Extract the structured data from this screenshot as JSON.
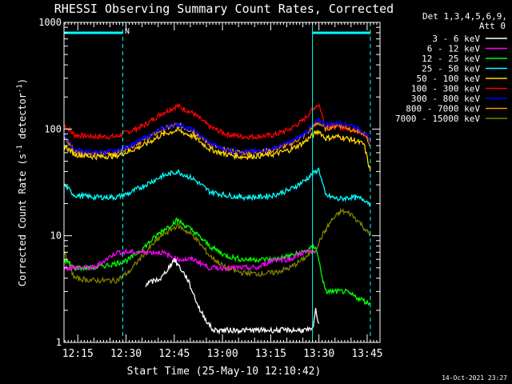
{
  "chart_data": {
    "type": "line",
    "title": "RHESSI Observing Summary Count Rates, Corrected",
    "xlabel": "Start Time (25-May-10 12:10:42)",
    "ylabel_main": "Corrected Count Rate (s",
    "ylabel_sup1": "-1",
    "ylabel_mid": " detector",
    "ylabel_sup2": "-1",
    "ylabel_end": ")",
    "yscale": "log",
    "ylim": [
      1,
      1000
    ],
    "xlim": [
      "12:10:42",
      "13:49:00"
    ],
    "x_ticks": [
      "12:15",
      "12:30",
      "12:45",
      "13:00",
      "13:15",
      "13:30",
      "13:45"
    ],
    "y_ticks": [
      "1",
      "10",
      "100",
      "1000"
    ],
    "legend_header": [
      "Det 1,3,4,5,6,9,",
      "Att 0"
    ],
    "legend_placement": "right",
    "timestamp": "14-Oct-2021 23:27",
    "annotation": "N",
    "night_markers": [
      "12:29",
      "13:28",
      "13:46"
    ],
    "series": [
      {
        "name": "3 - 6 keV",
        "color": "#000000"
      },
      {
        "name": "6 - 12 keV",
        "color": "#ff00ff"
      },
      {
        "name": "12 - 25 keV",
        "color": "#00ff00"
      },
      {
        "name": "25 - 50 keV",
        "color": "#00ffff"
      },
      {
        "name": "50 - 100 keV",
        "color": "#ffd700"
      },
      {
        "name": "100 - 300 keV",
        "color": "#ff0000"
      },
      {
        "name": "300 - 800 keV",
        "color": "#0000ff"
      },
      {
        "name": "800 - 7000 keV",
        "color": "#ff8c00"
      },
      {
        "name": "7000 - 15000 keV",
        "color": "#808000"
      }
    ],
    "curves": [
      {
        "series": 5,
        "x": [
          "12:10:42",
          "12:14",
          "12:20",
          "12:27",
          "12:31",
          "12:36",
          "12:41",
          "12:46",
          "12:51",
          "12:56",
          "13:01",
          "13:06",
          "13:11",
          "13:16",
          "13:21",
          "13:25",
          "13:29",
          "13:30",
          "13:32",
          "13:36",
          "13:40",
          "13:44",
          "13:46"
        ],
        "y": [
          110,
          88,
          85,
          85,
          95,
          110,
          140,
          165,
          140,
          105,
          90,
          85,
          85,
          88,
          100,
          120,
          165,
          170,
          108,
          105,
          100,
          95,
          75
        ]
      },
      {
        "series": 7,
        "x": [
          "12:10:42",
          "12:14",
          "12:20",
          "12:27",
          "12:31",
          "12:36",
          "12:41",
          "12:46",
          "12:51",
          "12:56",
          "13:01",
          "13:06",
          "13:11",
          "13:16",
          "13:21",
          "13:25",
          "13:29",
          "13:30",
          "13:32",
          "13:36",
          "13:40",
          "13:44",
          "13:46"
        ],
        "y": [
          85,
          62,
          58,
          60,
          68,
          80,
          98,
          110,
          95,
          72,
          63,
          60,
          61,
          64,
          72,
          85,
          110,
          115,
          100,
          110,
          100,
          90,
          70
        ]
      },
      {
        "series": 6,
        "x": [
          "12:10:42",
          "12:14",
          "12:20",
          "12:27",
          "12:31",
          "12:36",
          "12:41",
          "12:46",
          "12:51",
          "12:56",
          "13:01",
          "13:06",
          "13:11",
          "13:16",
          "13:21",
          "13:25",
          "13:29",
          "13:30",
          "13:32",
          "13:36",
          "13:40",
          "13:44",
          "13:46"
        ],
        "y": [
          88,
          64,
          60,
          62,
          70,
          82,
          100,
          112,
          97,
          74,
          64,
          61,
          62,
          66,
          75,
          88,
          115,
          120,
          110,
          115,
          110,
          95,
          75
        ]
      },
      {
        "series": 4,
        "x": [
          "12:10:42",
          "12:14",
          "12:20",
          "12:27",
          "12:31",
          "12:36",
          "12:41",
          "12:46",
          "12:51",
          "12:56",
          "13:01",
          "13:06",
          "13:11",
          "13:16",
          "13:21",
          "13:25",
          "13:29",
          "13:30",
          "13:32",
          "13:36",
          "13:40",
          "13:44",
          "13:46"
        ],
        "y": [
          70,
          58,
          55,
          56,
          62,
          72,
          88,
          98,
          85,
          65,
          58,
          55,
          56,
          58,
          64,
          74,
          92,
          96,
          82,
          85,
          80,
          72,
          40
        ]
      },
      {
        "series": 3,
        "x": [
          "12:10:42",
          "12:14",
          "12:20",
          "12:27",
          "12:31",
          "12:36",
          "12:41",
          "12:46",
          "12:51",
          "12:56",
          "13:01",
          "13:06",
          "13:11",
          "13:16",
          "13:21",
          "13:25",
          "13:29",
          "13:30",
          "13:32",
          "13:36",
          "13:40",
          "13:44",
          "13:46"
        ],
        "y": [
          30,
          24,
          23,
          23,
          25,
          30,
          36,
          40,
          34,
          26,
          24,
          23,
          23,
          24,
          27,
          32,
          40,
          42,
          24,
          22,
          23,
          22,
          20
        ]
      },
      {
        "series": 8,
        "x": [
          "12:10:42",
          "12:14",
          "12:20",
          "12:27",
          "12:31",
          "12:36",
          "12:41",
          "12:46",
          "12:51",
          "12:56",
          "13:01",
          "13:06",
          "13:11",
          "13:16",
          "13:21",
          "13:25",
          "13:29",
          "13:31",
          "13:34",
          "13:37",
          "13:40",
          "13:43",
          "13:46"
        ],
        "y": [
          7,
          4,
          3.8,
          3.8,
          4.6,
          7,
          10,
          12.5,
          10,
          6.5,
          5,
          4.5,
          4.4,
          4.5,
          5,
          6,
          7.5,
          10,
          14,
          17,
          16,
          13,
          10
        ]
      },
      {
        "series": 2,
        "x": [
          "12:10:42",
          "12:14",
          "12:20",
          "12:27",
          "12:31",
          "12:36",
          "12:41",
          "12:46",
          "12:51",
          "12:56",
          "13:01",
          "13:06",
          "13:11",
          "13:16",
          "13:21",
          "13:25",
          "13:29",
          "13:32",
          "13:38",
          "13:46"
        ],
        "y": [
          6,
          5,
          5,
          5.5,
          6,
          8,
          11,
          14,
          11,
          8,
          6.5,
          6,
          6,
          6,
          6.5,
          7,
          8,
          3,
          3,
          2.3
        ]
      },
      {
        "series": 1,
        "x": [
          "12:10:42",
          "12:14",
          "12:20",
          "12:27",
          "12:31",
          "12:36",
          "12:41",
          "12:46",
          "12:51",
          "12:56",
          "13:01",
          "13:06",
          "13:11",
          "13:16",
          "13:21",
          "13:25",
          "13:29"
        ],
        "y": [
          5,
          5,
          5,
          7,
          7,
          7,
          7,
          6,
          6,
          5,
          5,
          5,
          5,
          6,
          6,
          7,
          7
        ]
      },
      {
        "series": 0,
        "x": [
          "12:36",
          "12:41",
          "12:45",
          "12:49",
          "12:53",
          "12:57",
          "13:28",
          "13:29",
          "13:30"
        ],
        "y": [
          3.5,
          4,
          6,
          4,
          2,
          1.3,
          1.3,
          2,
          1.5
        ]
      }
    ]
  }
}
